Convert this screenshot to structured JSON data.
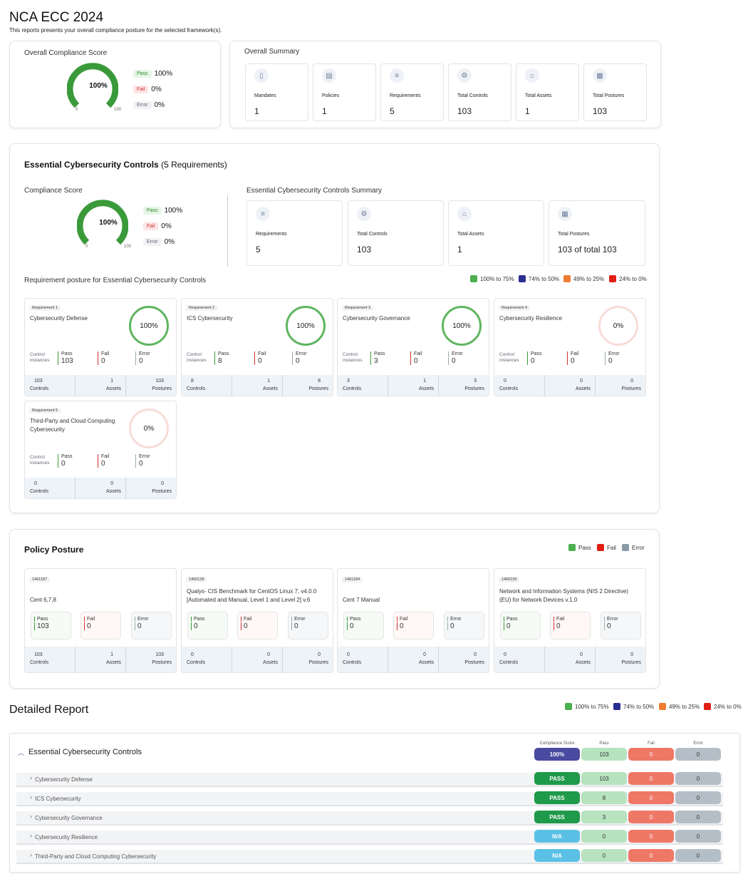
{
  "header": {
    "title": "NCA ECC 2024",
    "subtitle": "This reports presents your overall compliance posture for the selected framework(s)."
  },
  "overall_score": {
    "title": "Overall Compliance Score",
    "value": "100%",
    "min": "0",
    "max": "100",
    "level": 1.0,
    "legend": [
      {
        "badge": "Pass",
        "value": "100%"
      },
      {
        "badge": "Fail",
        "value": "0%"
      },
      {
        "badge": "Error",
        "value": "0%"
      }
    ]
  },
  "overall_summary": {
    "title": "Overall Summary",
    "items": [
      {
        "icon": "mandate-icon",
        "label": "Mandates",
        "value": "1"
      },
      {
        "icon": "policy-icon",
        "label": "Policies",
        "value": "1"
      },
      {
        "icon": "requirements-icon",
        "label": "Requirements",
        "value": "5"
      },
      {
        "icon": "controls-icon",
        "label": "Total Controls",
        "value": "103"
      },
      {
        "icon": "assets-icon",
        "label": "Total Assets",
        "value": "1"
      },
      {
        "icon": "postures-icon",
        "label": "Total Postures",
        "value": "103"
      }
    ]
  },
  "ecc": {
    "title_bold": "Essential Cybersecurity Controls",
    "title_rest": "(5 Requirements)",
    "score": {
      "title": "Compliance Score",
      "value": "100%",
      "min": "0",
      "max": "100",
      "level": 1.0,
      "legend": [
        {
          "badge": "Pass",
          "value": "100%"
        },
        {
          "badge": "Fail",
          "value": "0%"
        },
        {
          "badge": "Error",
          "value": "0%"
        }
      ]
    },
    "summary": {
      "title": "Essential Cybersecurity Controls Summary",
      "items": [
        {
          "icon": "requirements-icon",
          "label": "Requirements",
          "value": "5"
        },
        {
          "icon": "controls-icon",
          "label": "Total Controls",
          "value": "103"
        },
        {
          "icon": "assets-icon",
          "label": "Total Assets",
          "value": "1"
        },
        {
          "icon": "postures-icon",
          "label": "Total Postures",
          "value": "103 of total 103"
        }
      ]
    },
    "posture_title": "Requirement posture for Essential Cybersecurity Controls",
    "legend": [
      {
        "color": "#4caf50",
        "label": "100% to 75%"
      },
      {
        "color": "#2b2f8f",
        "label": "74% to 50%"
      },
      {
        "color": "#ef7d31",
        "label": "49% to 25%"
      },
      {
        "color": "#e01e12",
        "label": "24% to 0%"
      }
    ],
    "ci_label": "Control instances",
    "pass_label": "Pass",
    "fail_label": "Fail",
    "error_label": "Error",
    "foot_labels": [
      "Controls",
      "Assets",
      "Postures"
    ],
    "requirements": [
      {
        "tag": "Requirement 1",
        "name": "Cybersecurity Defense",
        "pct": "100%",
        "pass": "103",
        "fail": "0",
        "error": "0",
        "controls": "103",
        "assets": "1",
        "postures": "103"
      },
      {
        "tag": "Requirement 2",
        "name": "ICS Cybersecurity",
        "pct": "100%",
        "pass": "8",
        "fail": "0",
        "error": "0",
        "controls": "8",
        "assets": "1",
        "postures": "8"
      },
      {
        "tag": "Requirement 3",
        "name": "Cybersecurity Governance",
        "pct": "100%",
        "pass": "3",
        "fail": "0",
        "error": "0",
        "controls": "3",
        "assets": "1",
        "postures": "3"
      },
      {
        "tag": "Requirement 4",
        "name": "Cybersecurity Resilience",
        "pct": "0%",
        "pass": "0",
        "fail": "0",
        "error": "0",
        "controls": "0",
        "assets": "0",
        "postures": "0"
      },
      {
        "tag": "Requirement 5",
        "name": "Third-Party and Cloud Computing Cybersecurity",
        "pct": "0%",
        "pass": "0",
        "fail": "0",
        "error": "0",
        "controls": "0",
        "assets": "0",
        "postures": "0"
      }
    ]
  },
  "policy": {
    "title": "Policy Posture",
    "legend": [
      {
        "color": "#4caf50",
        "label": "Pass"
      },
      {
        "color": "#e01e12",
        "label": "Fail"
      },
      {
        "color": "#8a9ba8",
        "label": "Error"
      }
    ],
    "items": [
      {
        "tag": "1461187",
        "name": "Cent 6,7,8",
        "pass": "103",
        "fail": "0",
        "error": "0",
        "controls": "103",
        "assets": "1",
        "postures": "103"
      },
      {
        "tag": "1460128",
        "name": "Qualys- CIS Benchmark for CentOS Linux 7, v4.0.0 [Automated and Manual, Level 1 and Level 2] v.6",
        "pass": "0",
        "fail": "0",
        "error": "0",
        "controls": "0",
        "assets": "0",
        "postures": "0"
      },
      {
        "tag": "1461184",
        "name": "Cent 7 Manual",
        "pass": "0",
        "fail": "0",
        "error": "0",
        "controls": "0",
        "assets": "0",
        "postures": "0"
      },
      {
        "tag": "1460239",
        "name": "Network and Information Systems (NIS 2 Directive) (EU) for Network Devices v.1.0",
        "pass": "0",
        "fail": "0",
        "error": "0",
        "controls": "0",
        "assets": "0",
        "postures": "0"
      }
    ]
  },
  "detailed": {
    "title": "Detailed Report",
    "legend": [
      {
        "color": "#4caf50",
        "label": "100% to 75%"
      },
      {
        "color": "#2b2f8f",
        "label": "74% to 50%"
      },
      {
        "color": "#ef7d31",
        "label": "49% to 25%"
      },
      {
        "color": "#e01e12",
        "label": "24% to 0%"
      }
    ],
    "cols": [
      "Compliance Score",
      "Pass",
      "Fail",
      "Error"
    ],
    "group": {
      "name": "Essential Cybersecurity Controls",
      "score": "100%",
      "pass": "103",
      "fail": "0",
      "error": "0"
    },
    "rows": [
      {
        "name": "Cybersecurity Defense",
        "status": "PASS",
        "pass": "103",
        "fail": "0",
        "error": "0"
      },
      {
        "name": "ICS Cybersecurity",
        "status": "PASS",
        "pass": "8",
        "fail": "0",
        "error": "0"
      },
      {
        "name": "Cybersecurity Governance",
        "status": "PASS",
        "pass": "3",
        "fail": "0",
        "error": "0"
      },
      {
        "name": "Cybersecurity Resilience",
        "status": "N/A",
        "pass": "0",
        "fail": "0",
        "error": "0"
      },
      {
        "name": "Third-Party and Cloud Computing Cybersecurity",
        "status": "N/A",
        "pass": "0",
        "fail": "0",
        "error": "0"
      }
    ]
  },
  "colors": {
    "pass_pill": "#1f9a4a",
    "na_pill": "#5bc0e6",
    "score_pill": "#4a4aa0",
    "pass_cell": "#b7e3bf",
    "fail_cell": "#ef7766",
    "error_cell": "#b4bec7"
  }
}
